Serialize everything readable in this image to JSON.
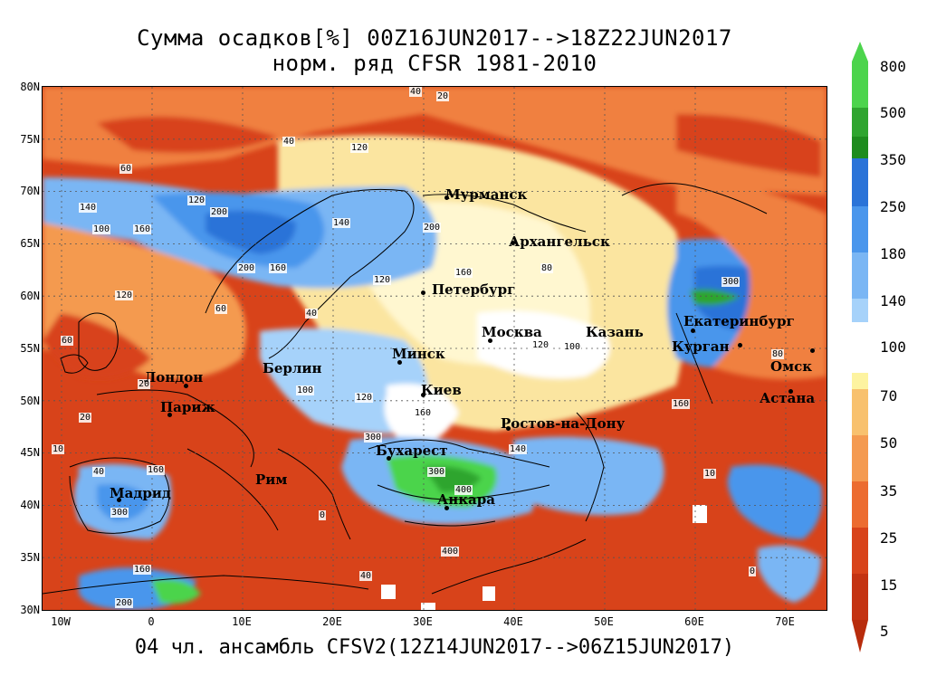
{
  "title": {
    "line1": "Сумма осадков[%] 00Z16JUN2017-->18Z22JUN2017",
    "line2": "норм. ряд CFSR 1981-2010"
  },
  "footer": "04 чл. ансамбль CFSV2(12Z14JUN2017-->06Z15JUN2017)",
  "lat_labels": [
    "80N",
    "75N",
    "70N",
    "65N",
    "60N",
    "55N",
    "50N",
    "45N",
    "40N",
    "35N",
    "30N"
  ],
  "lon_labels": [
    "10W",
    "0",
    "10E",
    "20E",
    "30E",
    "40E",
    "50E",
    "60E",
    "70E"
  ],
  "colorbar": {
    "labels": [
      "800",
      "500",
      "350",
      "250",
      "180",
      "140",
      "100",
      "70",
      "50",
      "35",
      "25",
      "15",
      "5"
    ],
    "colors": [
      "#4cd44c",
      "#2fa52f",
      "#1e8c1e",
      "#2a73d8",
      "#4a96ec",
      "#7ab6f4",
      "#a6d2fa",
      "#ffffff",
      "#fdf3a0",
      "#f8c16e",
      "#f49a50",
      "#ec6c30",
      "#d8431a",
      "#b82c0c"
    ]
  },
  "cities": [
    {
      "name": "Мурманск"
    },
    {
      "name": "Архангельск"
    },
    {
      "name": "Петербург"
    },
    {
      "name": "Москва"
    },
    {
      "name": "Казань"
    },
    {
      "name": "Екатеринбург"
    },
    {
      "name": "Курган"
    },
    {
      "name": "Омск"
    },
    {
      "name": "Астана"
    },
    {
      "name": "Минск"
    },
    {
      "name": "Киев"
    },
    {
      "name": "Берлин"
    },
    {
      "name": "Лондон"
    },
    {
      "name": "Париж"
    },
    {
      "name": "Ростов-на-Дону"
    },
    {
      "name": "Бухарест"
    },
    {
      "name": "Рим"
    },
    {
      "name": "Мадрид"
    },
    {
      "name": "Анкара"
    }
  ],
  "contour_values": [
    "40",
    "20",
    "120",
    "100",
    "60",
    "80",
    "140",
    "160",
    "200",
    "300",
    "10",
    "0",
    "400"
  ]
}
